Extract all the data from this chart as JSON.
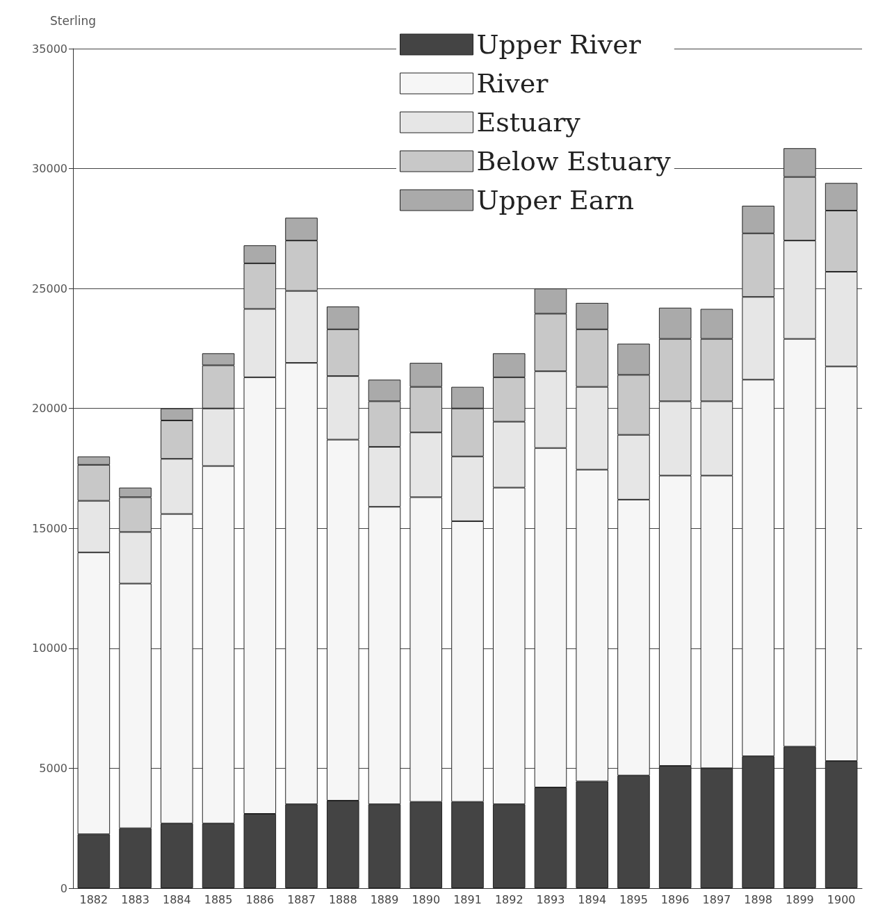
{
  "chart_data": {
    "type": "bar",
    "stacked": true,
    "ylabel": "Sterling",
    "categories": [
      "1882",
      "1883",
      "1884",
      "1885",
      "1886",
      "1887",
      "1888",
      "1889",
      "1890",
      "1891",
      "1892",
      "1893",
      "1894",
      "1895",
      "1896",
      "1897",
      "1898",
      "1899",
      "1900"
    ],
    "series": [
      {
        "name": "Upper River",
        "color": "#444444",
        "values": [
          2250,
          2500,
          2700,
          2700,
          3100,
          3500,
          3650,
          3500,
          3600,
          3600,
          3500,
          4200,
          4450,
          4700,
          5100,
          5000,
          5500,
          5900,
          5300
        ]
      },
      {
        "name": "River",
        "color": "#f6f6f6",
        "values": [
          11750,
          10200,
          12900,
          14900,
          18200,
          18400,
          15050,
          12400,
          12700,
          11700,
          13200,
          14150,
          13000,
          11500,
          12100,
          12200,
          15700,
          17000,
          16450
        ]
      },
      {
        "name": "Estuary",
        "color": "#e6e6e6",
        "values": [
          2150,
          2150,
          2300,
          2400,
          2850,
          3000,
          2650,
          2500,
          2700,
          2700,
          2750,
          3200,
          3450,
          2700,
          3100,
          3100,
          3450,
          4100,
          3950
        ]
      },
      {
        "name": "Below Estuary",
        "color": "#c8c8c8",
        "values": [
          1500,
          1450,
          1600,
          1800,
          1900,
          2100,
          1950,
          1900,
          1900,
          2000,
          1850,
          2400,
          2400,
          2500,
          2600,
          2600,
          2650,
          2650,
          2550
        ]
      },
      {
        "name": "Upper Earn",
        "color": "#aaaaaa",
        "values": [
          350,
          400,
          500,
          500,
          750,
          950,
          950,
          900,
          1000,
          900,
          1000,
          1050,
          1100,
          1300,
          1300,
          1250,
          1150,
          1200,
          1150
        ]
      }
    ],
    "ylim": [
      0,
      35000
    ],
    "yticks": [
      0,
      5000,
      10000,
      15000,
      20000,
      25000,
      30000,
      35000
    ],
    "grid": "y",
    "legend": "top"
  }
}
